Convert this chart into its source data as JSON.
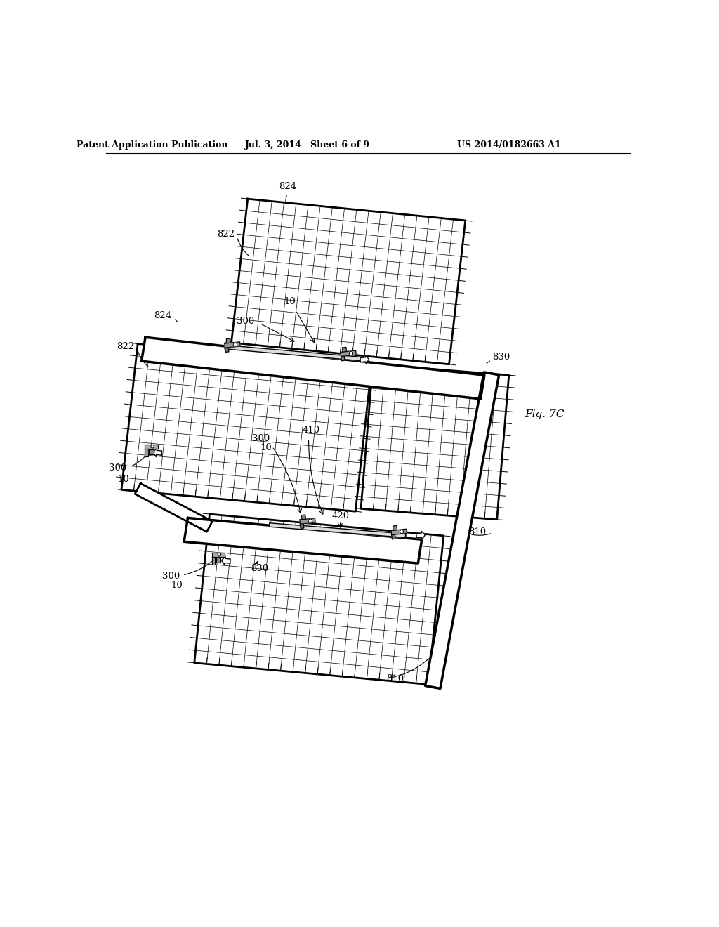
{
  "bg_color": "#ffffff",
  "header_left": "Patent Application Publication",
  "header_mid": "Jul. 3, 2014   Sheet 6 of 9",
  "header_right": "US 2014/0182663 A1",
  "fig_label": "Fig. 7C",
  "header_fontsize": 9,
  "label_fontsize": 9.5
}
